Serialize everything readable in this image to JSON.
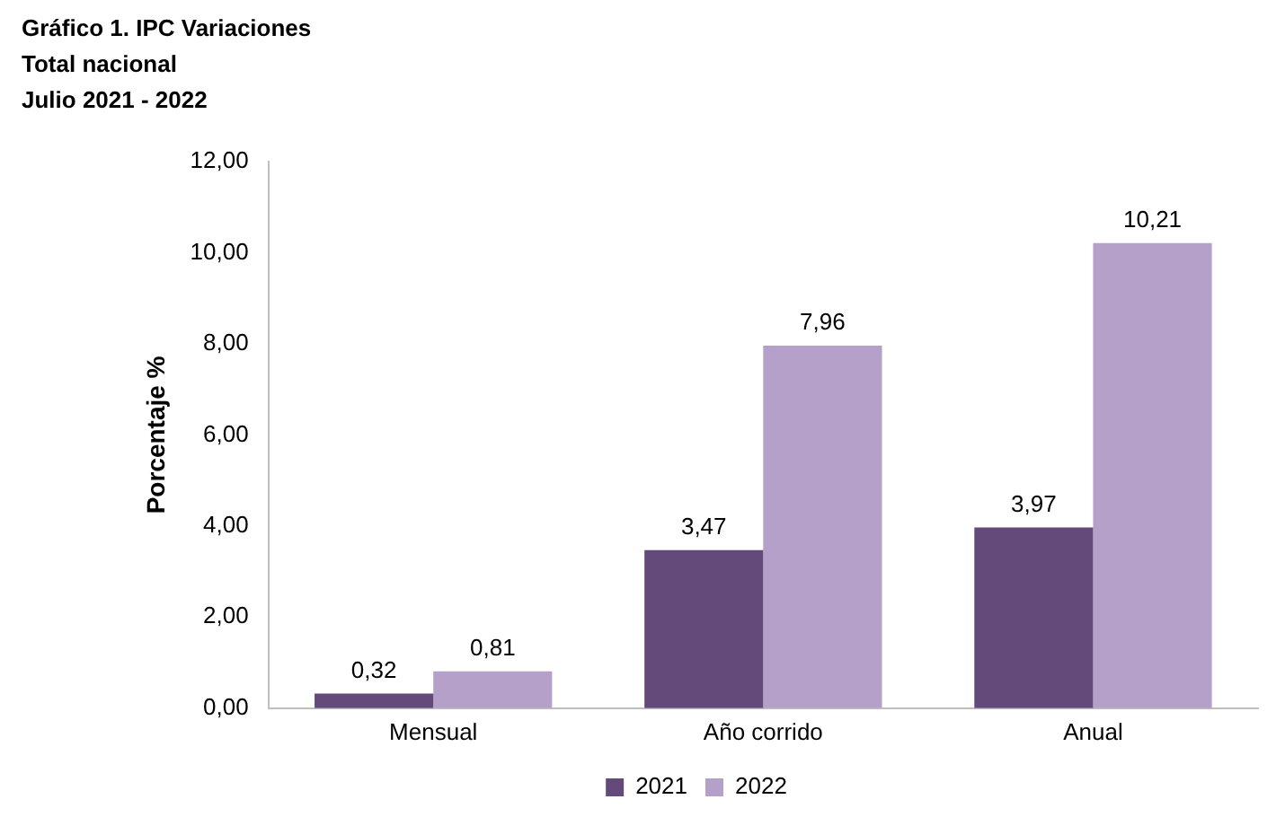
{
  "chart_data": {
    "type": "bar",
    "title": "Gráfico 1. IPC Variaciones",
    "subtitle": "Total nacional\nJulio 2021 - 2022",
    "ylabel": "Porcentaje %",
    "categories": [
      "Mensual",
      "Año corrido",
      "Anual"
    ],
    "series": [
      {
        "name": "2021",
        "color": "#634a7a",
        "values": [
          0.32,
          3.47,
          3.97
        ],
        "value_labels": [
          "0,32",
          "3,47",
          "3,97"
        ]
      },
      {
        "name": "2022",
        "color": "#b4a0c8",
        "values": [
          0.81,
          7.96,
          10.21
        ],
        "value_labels": [
          "0,81",
          "7,96",
          "10,21"
        ]
      }
    ],
    "ylim": [
      0,
      12
    ],
    "yticks": [
      {
        "value": 0,
        "label": "0,00"
      },
      {
        "value": 2,
        "label": "2,00"
      },
      {
        "value": 4,
        "label": "4,00"
      },
      {
        "value": 6,
        "label": "6,00"
      },
      {
        "value": 8,
        "label": "8,00"
      },
      {
        "value": 10,
        "label": "10,00"
      },
      {
        "value": 12,
        "label": "12,00"
      }
    ],
    "grid": false,
    "legend": "bottom"
  }
}
